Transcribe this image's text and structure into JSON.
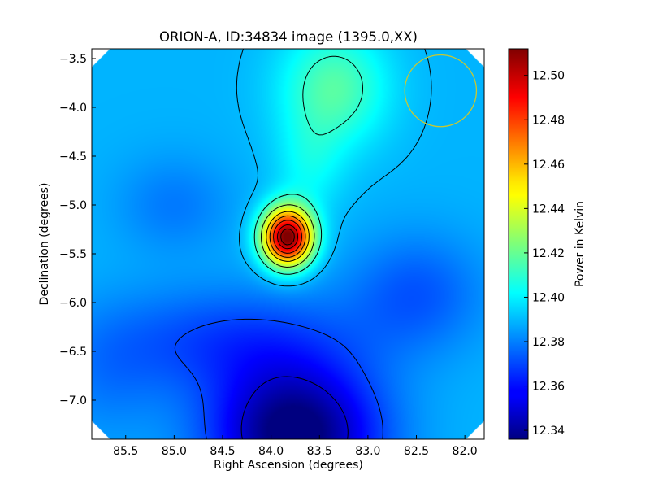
{
  "chart_data": {
    "type": "heatmap",
    "title": "ORION-A, ID:34834 image (1395.0,XX)",
    "xlabel": "Right Ascension (degrees)",
    "ylabel": "Declination (degrees)",
    "xlim": [
      85.85,
      81.8
    ],
    "ylim": [
      -7.4,
      -3.4
    ],
    "x_ticks": [
      85.5,
      85.0,
      84.5,
      84.0,
      83.5,
      83.0,
      82.5,
      82.0
    ],
    "x_tick_labels": [
      "85.5",
      "85.0",
      "84.5",
      "84.0",
      "83.5",
      "83.0",
      "82.5",
      "82.0"
    ],
    "y_ticks": [
      -3.5,
      -4.0,
      -4.5,
      -5.0,
      -5.5,
      -6.0,
      -6.5,
      -7.0
    ],
    "y_tick_labels": [
      "−3.5",
      "−4.0",
      "−4.5",
      "−5.0",
      "−5.5",
      "−6.0",
      "−6.5",
      "−7.0"
    ],
    "colormap": "jet",
    "colorbar": {
      "label": "Power in Kelvin",
      "min": 12.336,
      "max": 12.512,
      "ticks": [
        12.34,
        12.36,
        12.38,
        12.4,
        12.42,
        12.44,
        12.46,
        12.48,
        12.5
      ],
      "tick_labels": [
        "12.34",
        "12.36",
        "12.38",
        "12.40",
        "12.42",
        "12.44",
        "12.46",
        "12.48",
        "12.50"
      ]
    },
    "peak": {
      "ra": 83.83,
      "dec": -5.33,
      "value": 12.51
    },
    "minimum": {
      "ra": 83.75,
      "dec": -7.35,
      "value": 12.336
    },
    "beam_circle": {
      "ra": 82.25,
      "dec": -3.83,
      "radius_deg": 0.37,
      "color": "#c8c832"
    },
    "contour_levels": [
      12.35,
      12.37,
      12.39,
      12.41,
      12.43,
      12.45,
      12.465,
      12.48,
      12.495,
      12.505
    ]
  }
}
